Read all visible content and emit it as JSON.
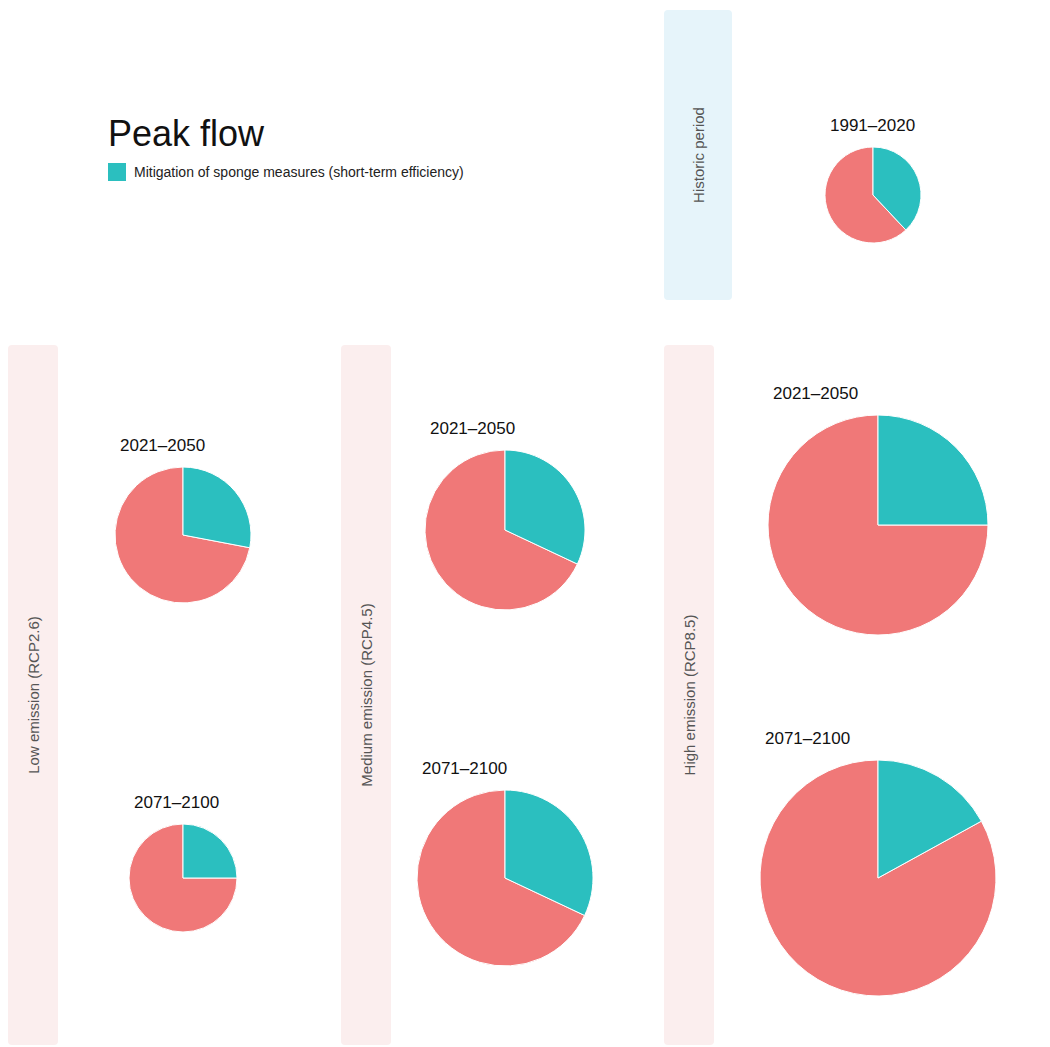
{
  "title": "Peak flow",
  "chart_data": [
    {
      "type": "pie",
      "title": "1991–2020",
      "subtitle": "Historic period",
      "categories": [
        null,
        "Mitigation of sponge measures (short-term efficiency)"
      ],
      "values": [
        0.62,
        0.38
      ],
      "colors": [
        "#F07878",
        "#2BBFBF"
      ],
      "size": 48
    },
    {
      "type": "pie",
      "title": "2021–2050",
      "subtitle": "Low emission (RCP2.6)",
      "categories": [
        null,
        "Mitigation of sponge measures (short-term efficiency)"
      ],
      "values": [
        0.72,
        0.28
      ],
      "colors": [
        "#F07878",
        "#2BBFBF"
      ],
      "size": 68
    },
    {
      "type": "pie",
      "title": "2071–2100",
      "subtitle": "Low emission (RCP2.6)",
      "categories": [
        null,
        "Mitigation of sponge measures (short-term efficiency)"
      ],
      "values": [
        0.75,
        0.25
      ],
      "colors": [
        "#F07878",
        "#2BBFBF"
      ],
      "size": 54
    },
    {
      "type": "pie",
      "title": "2021–2050",
      "subtitle": "Medium emission (RCP4.5)",
      "categories": [
        null,
        "Mitigation of sponge measures (short-term efficiency)"
      ],
      "values": [
        0.68,
        0.32
      ],
      "colors": [
        "#F07878",
        "#2BBFBF"
      ],
      "size": 80
    },
    {
      "type": "pie",
      "title": "2071–2100",
      "subtitle": "Medium emission (RCP4.5)",
      "categories": [
        null,
        "Mitigation of sponge measures (short-term efficiency)"
      ],
      "values": [
        0.68,
        0.32
      ],
      "colors": [
        "#F07878",
        "#2BBFBF"
      ],
      "size": 88
    },
    {
      "type": "pie",
      "title": "2021–2050",
      "subtitle": "High emission (RCP8.5)",
      "categories": [
        null,
        "Mitigation of sponge measures (short-term efficiency)"
      ],
      "values": [
        0.75,
        0.25
      ],
      "colors": [
        "#F07878",
        "#2BBFBF"
      ],
      "size": 110
    },
    {
      "type": "pie",
      "title": "2071–2100",
      "subtitle": "High emission (RCP8.5)",
      "categories": [
        null,
        "Mitigation of sponge measures (short-term efficiency)"
      ],
      "values": [
        0.83,
        0.17
      ],
      "colors": [
        "#F07878",
        "#2BBFBF"
      ],
      "size": 118
    }
  ]
}
